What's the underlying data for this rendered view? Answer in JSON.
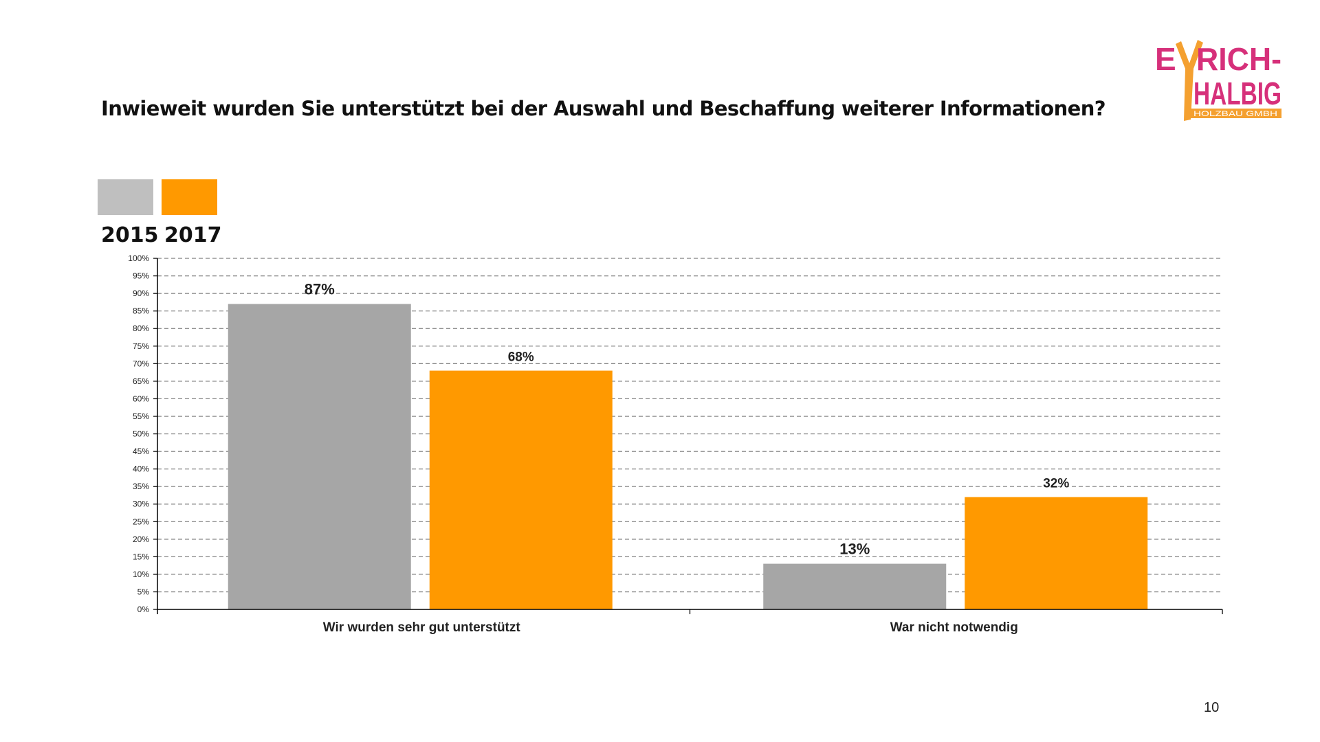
{
  "title": "Inwieweit wurden Sie unterstützt bei der Auswahl und Beschaffung weiterer Informationen?",
  "logo": {
    "line1": "EYRICH-",
    "line2": "HALBIG",
    "line3": "HOLZBAU GMBH",
    "colors": {
      "pink": "#d6307a",
      "orange": "#f4a030"
    }
  },
  "page_number": "10",
  "chart_data": {
    "type": "bar",
    "title": "Inwieweit wurden Sie unterstützt bei der Auswahl und Beschaffung weiterer Informationen?",
    "categories": [
      "Wir wurden sehr gut unterstützt",
      "War nicht notwendig"
    ],
    "series": [
      {
        "name": "2015",
        "values": [
          87,
          13
        ],
        "color": "#a6a6a6",
        "legend_color": "#bfbfbf"
      },
      {
        "name": "2017",
        "values": [
          68,
          32
        ],
        "color": "#ff9900",
        "legend_color": "#ff9900"
      }
    ],
    "data_labels": [
      [
        "87%",
        "13%"
      ],
      [
        "68%",
        "32%"
      ]
    ],
    "ylim": [
      0,
      100
    ],
    "ytick_step": 5,
    "ytick_format": "%",
    "grid": true,
    "legend_placement": "top-left",
    "xlabel": "",
    "ylabel": ""
  }
}
